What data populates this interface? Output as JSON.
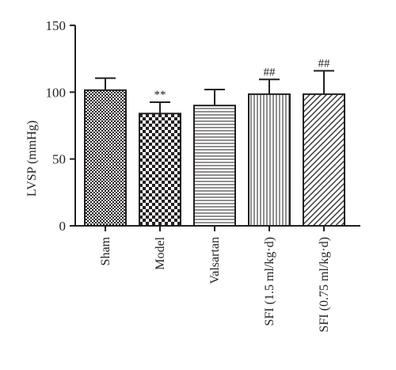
{
  "chart_data": {
    "type": "bar",
    "categories": [
      "Sham",
      "Model",
      "Valsartan",
      "SFI (1.5 ml/kg·d)",
      "SFI (0.75 ml/kg·d)"
    ],
    "values": [
      101.5,
      84,
      90,
      98.5,
      98.5
    ],
    "error_upper": [
      110.5,
      92.5,
      102,
      109.5,
      116
    ],
    "annotations": [
      "",
      "**",
      "",
      "##",
      "##"
    ],
    "patterns": [
      "checker-small",
      "checker-large",
      "horizontal-lines",
      "vertical-lines",
      "diagonal-lines"
    ],
    "ylabel": "LVSP (mmHg)",
    "xlabel": "",
    "title": "",
    "ylim": [
      0,
      150
    ],
    "yticks": [
      0,
      50,
      100,
      150
    ],
    "grid": false,
    "bar_color": "#231f20"
  }
}
